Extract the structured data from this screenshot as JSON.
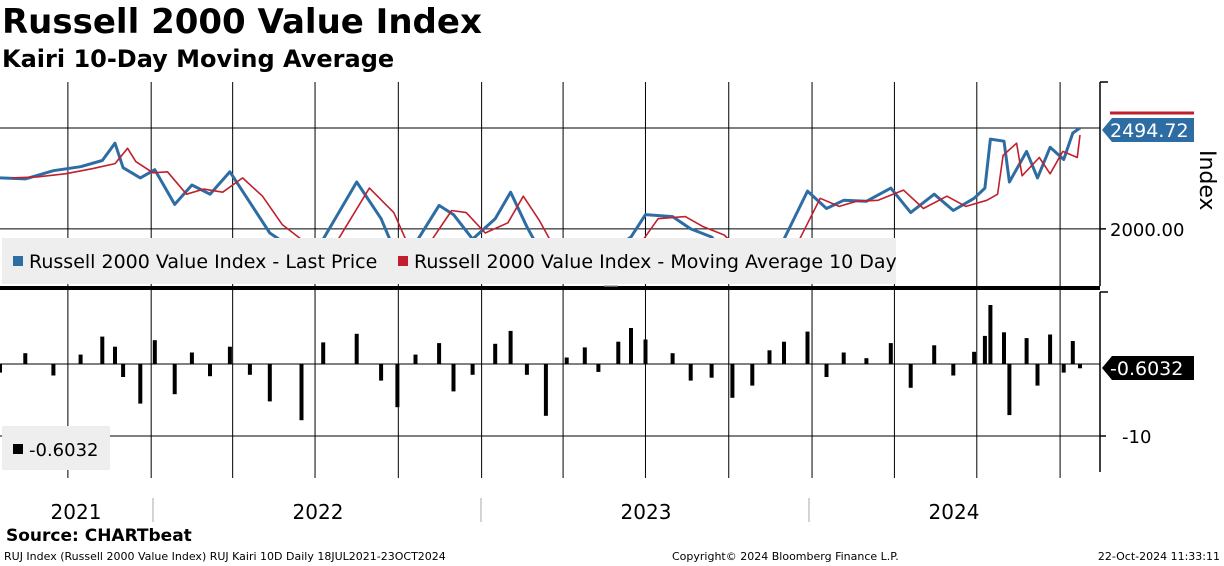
{
  "header": {
    "title": "Russell 2000 Value Index",
    "subtitle": "Kairi 10-Day Moving Average"
  },
  "footer": {
    "source": "Source: CHARTbeat",
    "left": "RUJ Index (Russell 2000 Value Index) RUJ Kairi 10D  Daily 18JUL2021-23OCT2024",
    "center": "Copyright© 2024 Bloomberg Finance L.P.",
    "right": "22-Oct-2024 11:33:11"
  },
  "colors": {
    "price": "#2e6da4",
    "moving_average": "#c0202e",
    "histogram": "#000000",
    "grid": "#000000",
    "price_box": "#2e6da4",
    "kairi_box": "#000000",
    "legend_bg": "#eeeeee"
  },
  "chart_data": [
    {
      "type": "line",
      "panel": "price",
      "x_range": [
        "2021-07-18",
        "2024-10-23"
      ],
      "x_tick_labels": [
        "2021",
        "2022",
        "2023",
        "2024"
      ],
      "y_ticks": [
        {
          "value": 2000,
          "label": "2000.00"
        }
      ],
      "ylim": [
        1720,
        2720
      ],
      "ylabel": "Index",
      "last_value": 2494.72,
      "last_value_label": "2494.72",
      "legend": [
        {
          "name": "Russell 2000 Value Index - Last Price",
          "color": "#2e6da4"
        },
        {
          "name": "Russell 2000 Value Index - Moving Average 10 Day",
          "color": "#c0202e"
        }
      ],
      "series": [
        {
          "name": "Russell 2000 Value Index - Last Price",
          "x": [
            "2021-07-18",
            "2021-08-15",
            "2021-09-15",
            "2021-10-15",
            "2021-11-08",
            "2021-11-22",
            "2021-12-01",
            "2021-12-20",
            "2022-01-05",
            "2022-01-27",
            "2022-02-15",
            "2022-03-07",
            "2022-03-29",
            "2022-04-20",
            "2022-05-12",
            "2022-06-16",
            "2022-07-10",
            "2022-08-16",
            "2022-09-12",
            "2022-09-30",
            "2022-10-20",
            "2022-11-15",
            "2022-12-01",
            "2022-12-22",
            "2023-01-16",
            "2023-02-02",
            "2023-02-20",
            "2023-03-13",
            "2023-04-05",
            "2023-04-25",
            "2023-05-10",
            "2023-06-01",
            "2023-06-15",
            "2023-07-01",
            "2023-07-31",
            "2023-08-20",
            "2023-09-12",
            "2023-10-05",
            "2023-10-27",
            "2023-11-15",
            "2023-12-01",
            "2023-12-27",
            "2024-01-17",
            "2024-02-05",
            "2024-03-01",
            "2024-03-28",
            "2024-04-19",
            "2024-05-15",
            "2024-06-05",
            "2024-06-28",
            "2024-07-10",
            "2024-07-16",
            "2024-07-31",
            "2024-08-06",
            "2024-08-25",
            "2024-09-06",
            "2024-09-20",
            "2024-10-05",
            "2024-10-15",
            "2024-10-23"
          ],
          "values": [
            2250,
            2245,
            2285,
            2305,
            2335,
            2420,
            2300,
            2250,
            2290,
            2120,
            2215,
            2170,
            2280,
            2130,
            1980,
            1875,
            1950,
            2230,
            2050,
            1860,
            1930,
            2115,
            2070,
            1950,
            2050,
            2180,
            2010,
            1840,
            1875,
            1830,
            1825,
            1920,
            1960,
            2070,
            2060,
            2000,
            1960,
            1840,
            1760,
            1840,
            1950,
            2185,
            2100,
            2140,
            2135,
            2200,
            2080,
            2170,
            2090,
            2150,
            2200,
            2440,
            2430,
            2230,
            2380,
            2250,
            2400,
            2340,
            2470,
            2494.72
          ]
        },
        {
          "name": "Russell 2000 Value Index - Moving Average 10 Day",
          "x": [
            "2021-07-31",
            "2021-08-28",
            "2021-09-28",
            "2021-10-28",
            "2021-11-22",
            "2021-12-06",
            "2021-12-15",
            "2022-01-03",
            "2022-01-19",
            "2022-02-09",
            "2022-02-28",
            "2022-03-21",
            "2022-04-12",
            "2022-05-04",
            "2022-05-26",
            "2022-06-30",
            "2022-07-24",
            "2022-08-30",
            "2022-09-26",
            "2022-10-14",
            "2022-11-03",
            "2022-11-29",
            "2022-12-15",
            "2023-01-05",
            "2023-01-30",
            "2023-02-16",
            "2023-03-06",
            "2023-03-27",
            "2023-04-19",
            "2023-05-09",
            "2023-05-24",
            "2023-06-15",
            "2023-06-29",
            "2023-07-15",
            "2023-08-14",
            "2023-09-03",
            "2023-09-26",
            "2023-10-19",
            "2023-11-10",
            "2023-11-29",
            "2023-12-15",
            "2024-01-10",
            "2024-01-31",
            "2024-02-19",
            "2024-03-14",
            "2024-04-11",
            "2024-05-03",
            "2024-05-29",
            "2024-06-19",
            "2024-07-12",
            "2024-07-24",
            "2024-07-30",
            "2024-08-14",
            "2024-08-20",
            "2024-09-08",
            "2024-09-20",
            "2024-10-04",
            "2024-10-20",
            "2024-10-23"
          ],
          "values": [
            2250,
            2255,
            2270,
            2295,
            2320,
            2395,
            2330,
            2275,
            2280,
            2170,
            2195,
            2180,
            2250,
            2160,
            2020,
            1900,
            1930,
            2200,
            2080,
            1900,
            1920,
            2090,
            2080,
            1980,
            2030,
            2160,
            2040,
            1870,
            1870,
            1840,
            1830,
            1900,
            1950,
            2050,
            2060,
            2010,
            1970,
            1870,
            1790,
            1830,
            1920,
            2150,
            2110,
            2135,
            2140,
            2190,
            2100,
            2160,
            2110,
            2140,
            2170,
            2360,
            2420,
            2260,
            2350,
            2270,
            2380,
            2350,
            2460
          ]
        }
      ]
    },
    {
      "type": "bar",
      "panel": "kairi",
      "x_range": [
        "2021-07-18",
        "2024-10-23"
      ],
      "y_ticks": [
        {
          "value": -10,
          "label": "-10"
        }
      ],
      "ylim": [
        -15,
        10
      ],
      "last_value": -0.6032,
      "last_value_label": "-0.6032",
      "legend": [
        {
          "name": "-0.6032",
          "color": "#000000"
        }
      ],
      "series": [
        {
          "name": "Kairi 10D",
          "x": [
            "2021-07-18",
            "2021-08-15",
            "2021-09-15",
            "2021-10-15",
            "2021-11-08",
            "2021-11-22",
            "2021-12-01",
            "2021-12-20",
            "2022-01-05",
            "2022-01-27",
            "2022-02-15",
            "2022-03-07",
            "2022-03-29",
            "2022-04-20",
            "2022-05-12",
            "2022-06-16",
            "2022-07-10",
            "2022-08-16",
            "2022-09-12",
            "2022-09-30",
            "2022-10-20",
            "2022-11-15",
            "2022-12-01",
            "2022-12-22",
            "2023-01-16",
            "2023-02-02",
            "2023-02-20",
            "2023-03-13",
            "2023-04-05",
            "2023-04-25",
            "2023-05-10",
            "2023-06-01",
            "2023-06-15",
            "2023-07-01",
            "2023-07-31",
            "2023-08-20",
            "2023-09-12",
            "2023-10-05",
            "2023-10-27",
            "2023-11-15",
            "2023-12-01",
            "2023-12-27",
            "2024-01-17",
            "2024-02-05",
            "2024-03-01",
            "2024-03-28",
            "2024-04-19",
            "2024-05-15",
            "2024-06-05",
            "2024-06-28",
            "2024-07-10",
            "2024-07-16",
            "2024-07-31",
            "2024-08-06",
            "2024-08-25",
            "2024-09-06",
            "2024-09-20",
            "2024-10-05",
            "2024-10-15",
            "2024-10-23"
          ],
          "values": [
            -1.2,
            1.5,
            -1.6,
            1.3,
            3.8,
            2.4,
            -1.8,
            -5.5,
            3.3,
            -4.2,
            1.6,
            -1.7,
            2.4,
            -1.5,
            -5.2,
            -7.8,
            3.0,
            4.2,
            -2.3,
            -6.0,
            1.3,
            2.9,
            -3.8,
            -1.5,
            2.8,
            4.6,
            -1.5,
            -7.2,
            0.9,
            2.3,
            -1.1,
            3.1,
            5.0,
            3.4,
            1.5,
            -2.3,
            -1.9,
            -4.7,
            -3.0,
            1.9,
            3.1,
            4.5,
            -1.8,
            1.6,
            0.8,
            2.9,
            -3.3,
            2.6,
            -1.6,
            1.7,
            3.9,
            8.2,
            4.4,
            -7.1,
            3.6,
            -3.0,
            4.1,
            -1.2,
            3.2,
            -0.6032
          ]
        }
      ]
    }
  ]
}
